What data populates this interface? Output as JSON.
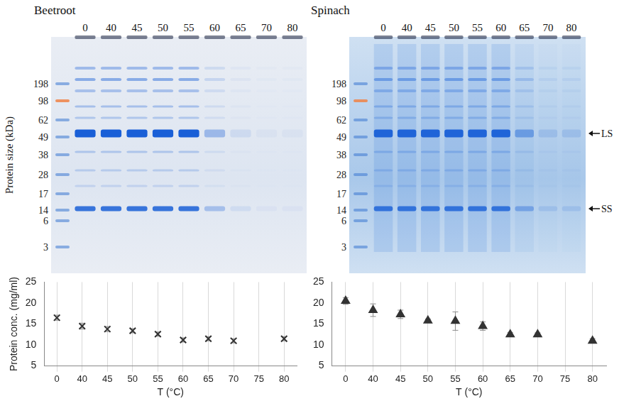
{
  "gels": [
    {
      "title": "Beetroot",
      "y_label": "Protein size (kDa)",
      "lanes": [
        0,
        40,
        45,
        50,
        55,
        60,
        65,
        70,
        80
      ],
      "ladder": [
        198,
        98,
        62,
        49,
        38,
        28,
        17,
        14,
        6,
        3
      ]
    },
    {
      "title": "Spinach",
      "lanes": [
        0,
        40,
        45,
        50,
        55,
        60,
        65,
        70,
        80
      ],
      "ladder": [
        198,
        98,
        62,
        49,
        38,
        28,
        17,
        14,
        6,
        3
      ],
      "band_labels": [
        "LS",
        "SS"
      ]
    }
  ],
  "chart_data": [
    {
      "type": "scatter",
      "x_label": "T (°C)",
      "y_label": "Protein conc. (mg/ml)",
      "categories": [
        "0",
        "40",
        "45",
        "50",
        "55",
        "60",
        "65",
        "70",
        "75",
        "80"
      ],
      "values": [
        16.5,
        14.5,
        13.8,
        13.4,
        12.6,
        11.2,
        11.5,
        11.0,
        null,
        11.5
      ],
      "errors": [
        0.6,
        0.7,
        0.6,
        0.5,
        0.5,
        0.5,
        0.5,
        0.5,
        null,
        0.5
      ],
      "marker": "cross",
      "color": "#333333",
      "ylim": [
        5,
        25
      ],
      "yticks": [
        5,
        10,
        15,
        20,
        25
      ],
      "grid": true
    },
    {
      "type": "scatter",
      "x_label": "T (°C)",
      "categories": [
        "0",
        "40",
        "45",
        "50",
        "55",
        "60",
        "65",
        "70",
        "75",
        "80"
      ],
      "values": [
        20.5,
        18.3,
        17.3,
        15.8,
        15.7,
        14.5,
        12.5,
        12.5,
        null,
        11.0
      ],
      "errors": [
        0.8,
        1.5,
        1.0,
        0.4,
        2.2,
        1.0,
        0.5,
        0.4,
        null,
        0.5
      ],
      "marker": "triangle",
      "color": "#333333",
      "ylim": [
        5,
        25
      ],
      "yticks": [
        5,
        10,
        15,
        20,
        25
      ],
      "grid": true
    }
  ]
}
